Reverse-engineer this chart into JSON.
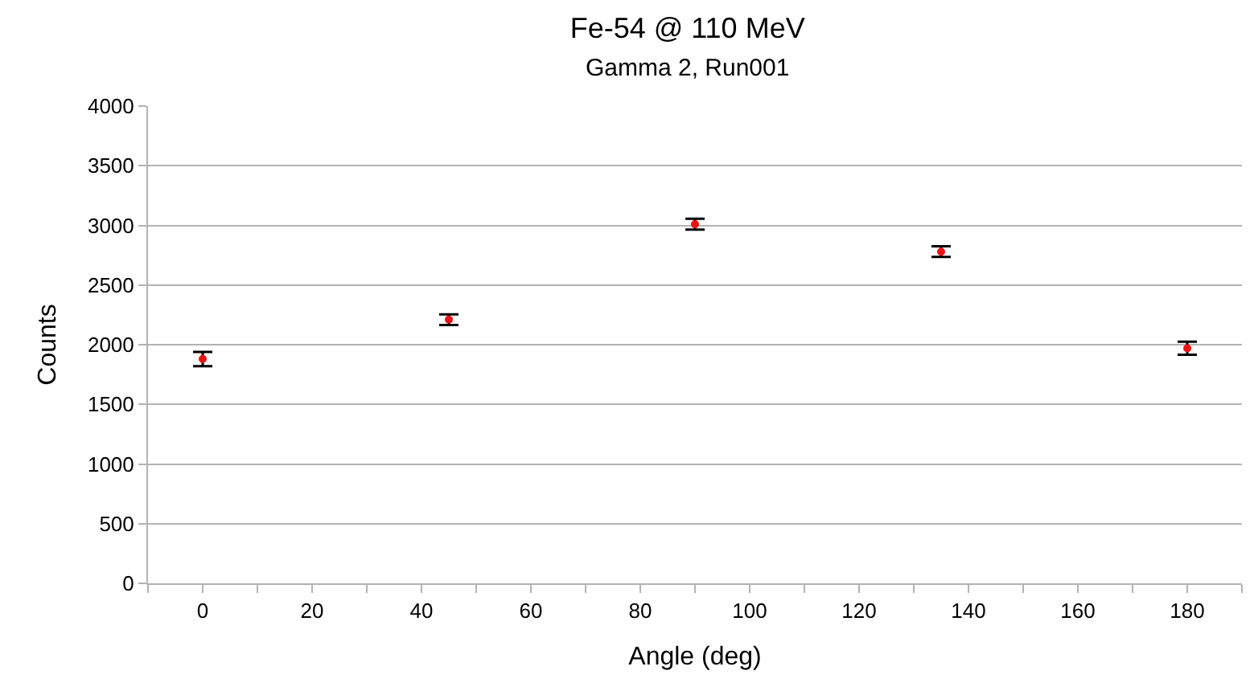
{
  "chart_data": {
    "type": "scatter",
    "title": "Fe-54 @ 110 MeV",
    "subtitle": "Gamma 2, Run001",
    "xlabel": "Angle (deg)",
    "ylabel": "Counts",
    "x": [
      0,
      45,
      90,
      135,
      180
    ],
    "series": [
      {
        "color": "#ee1111",
        "values": [
          1880,
          2210,
          3010,
          2780,
          1970
        ],
        "errors": [
          60,
          45,
          45,
          45,
          55
        ]
      }
    ],
    "xlim": [
      -10,
      190
    ],
    "xticks": [
      {
        "value": -10,
        "label": null
      },
      0,
      {
        "value": 10,
        "label": null
      },
      20,
      {
        "value": 30,
        "label": null
      },
      40,
      {
        "value": 50,
        "label": null
      },
      60,
      {
        "value": 70,
        "label": null
      },
      80,
      {
        "value": 90,
        "label": null
      },
      100,
      {
        "value": 110,
        "label": null
      },
      120,
      {
        "value": 130,
        "label": null
      },
      140,
      {
        "value": 150,
        "label": null
      },
      160,
      {
        "value": 170,
        "label": null
      },
      180,
      {
        "value": 190,
        "label": null
      }
    ],
    "ylim": [
      0,
      4000
    ],
    "yticks": [
      0,
      500,
      1000,
      1500,
      2000,
      2500,
      3000,
      3500,
      4000
    ],
    "grid": "y",
    "marker": "circle"
  }
}
